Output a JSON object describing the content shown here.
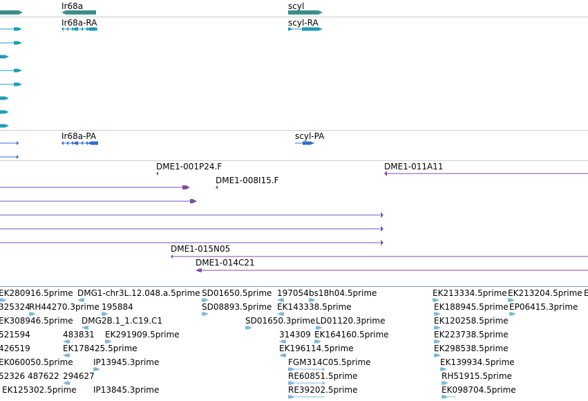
{
  "colors": {
    "gene": "#3a8f8f",
    "transcript": "#1f9cb4",
    "protein": "#2f6fcf",
    "clone": "#7a4fa8",
    "est": "#7fb8dc",
    "separator": "#c8ccd0"
  },
  "tracks": {
    "gene": {
      "labels": [
        {
          "id": "ir68a",
          "text": "Ir68a"
        },
        {
          "id": "scyl",
          "text": "scyl"
        }
      ]
    },
    "transcript": {
      "labels": [
        {
          "id": "ir68a-ra",
          "text": "Ir68a-RA"
        },
        {
          "id": "scyl-ra",
          "text": "scyl-RA"
        }
      ]
    },
    "protein": {
      "labels": [
        {
          "id": "ir68a-pa",
          "text": "Ir68a-PA"
        },
        {
          "id": "scyl-pa",
          "text": "scyl-PA"
        }
      ]
    },
    "clone": {
      "labels": [
        {
          "id": "dme1-001p24f",
          "text": "DME1-001P24.F"
        },
        {
          "id": "dme1-011a11",
          "text": "DME1-011A11"
        },
        {
          "id": "dme1-008i15f",
          "text": "DME1-008I15.F"
        },
        {
          "id": "dme1-015n05",
          "text": "DME1-015N05"
        },
        {
          "id": "dme1-014c21",
          "text": "DME1-014C21"
        }
      ]
    },
    "est": {
      "labels": [
        {
          "id": "e1",
          "text": "EK280916.5prime"
        },
        {
          "id": "e2",
          "text": "DMG1-chr3L.12.048.a.5prime"
        },
        {
          "id": "e3",
          "text": "SD01650.5prime"
        },
        {
          "id": "e4",
          "text": "197054"
        },
        {
          "id": "e5",
          "text": "bs18h04.5prime"
        },
        {
          "id": "e6",
          "text": "EK213334.5prime"
        },
        {
          "id": "e7",
          "text": "EK213204.5prime"
        },
        {
          "id": "e8",
          "text": "E"
        },
        {
          "id": "e9",
          "text": "325324"
        },
        {
          "id": "e10",
          "text": "RH44270.3prime"
        },
        {
          "id": "e11",
          "text": "195884"
        },
        {
          "id": "e12",
          "text": "SD08893.5prime"
        },
        {
          "id": "e13",
          "text": "EK143338.5prime"
        },
        {
          "id": "e14",
          "text": "EK188945.5prime"
        },
        {
          "id": "e15",
          "text": "EP06415.3prime"
        },
        {
          "id": "e16",
          "text": "EK308946.5prime"
        },
        {
          "id": "e17",
          "text": "DMG2B.1_1.C19.C1"
        },
        {
          "id": "e18",
          "text": "SD01650.3prime"
        },
        {
          "id": "e19",
          "text": "LD01120.3prime"
        },
        {
          "id": "e20",
          "text": "EK120258.5prime"
        },
        {
          "id": "e21",
          "text": "521594"
        },
        {
          "id": "e22",
          "text": "483831"
        },
        {
          "id": "e23",
          "text": "EK291909.5prime"
        },
        {
          "id": "e24",
          "text": "314309"
        },
        {
          "id": "e25",
          "text": "EK164160.5prime"
        },
        {
          "id": "e26",
          "text": "EK223738.5prime"
        },
        {
          "id": "e27",
          "text": "426519"
        },
        {
          "id": "e28",
          "text": "EK178425.5prime"
        },
        {
          "id": "e29",
          "text": "EK196114.5prime"
        },
        {
          "id": "e30",
          "text": "EK298538.5prime"
        },
        {
          "id": "e31",
          "text": "EK060050.5prime"
        },
        {
          "id": "e32",
          "text": "IP13945.3prime"
        },
        {
          "id": "e33",
          "text": "FGM314C05.5prime"
        },
        {
          "id": "e34",
          "text": "EK139934.5prime"
        },
        {
          "id": "e35",
          "text": "52326"
        },
        {
          "id": "e36",
          "text": "487622"
        },
        {
          "id": "e37",
          "text": "294627"
        },
        {
          "id": "e38",
          "text": "RE60851.5prime"
        },
        {
          "id": "e39",
          "text": "RH51915.5prime"
        },
        {
          "id": "e40",
          "text": "EK125302.5prime"
        },
        {
          "id": "e41",
          "text": "IP13845.3prime"
        },
        {
          "id": "e42",
          "text": "RE39202.5prime"
        },
        {
          "id": "e43",
          "text": "EK098704.5prime"
        }
      ]
    }
  }
}
